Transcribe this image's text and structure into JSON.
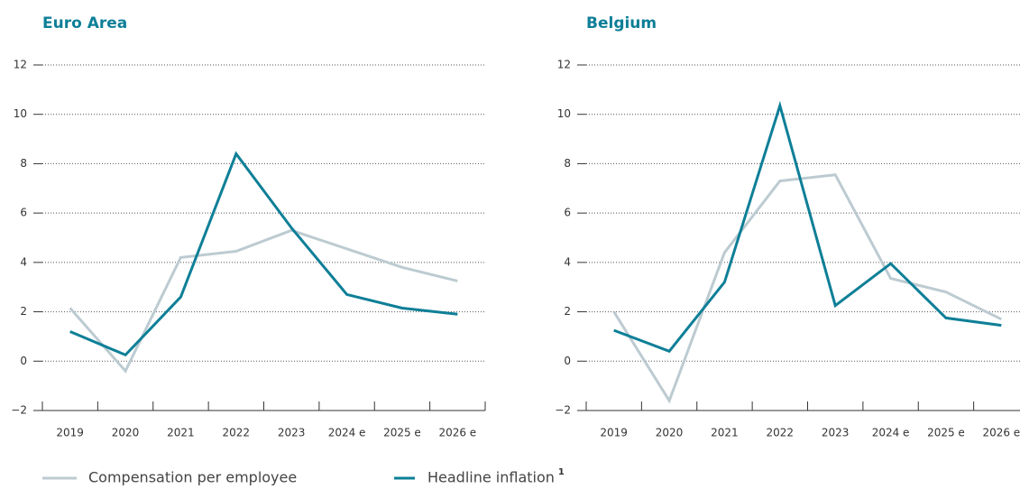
{
  "chart_data": [
    {
      "type": "line",
      "title": "Euro Area",
      "categories": [
        "2019",
        "2020",
        "2021",
        "2022",
        "2023",
        "2024 e",
        "2025 e",
        "2026 e"
      ],
      "series": [
        {
          "color": "#bccbd1",
          "values": [
            2.15,
            -0.4,
            4.2,
            4.45,
            5.3,
            4.55,
            3.8,
            3.25
          ]
        },
        {
          "color": "#0e7f97",
          "values": [
            1.2,
            0.25,
            2.6,
            8.4,
            5.4,
            2.7,
            2.15,
            1.9
          ]
        }
      ],
      "ylim": [
        -2,
        12
      ],
      "yticks": [
        {
          "value": -2,
          "label": "−2"
        },
        0,
        2,
        4,
        6,
        8,
        10,
        12
      ],
      "grid": true
    },
    {
      "type": "line",
      "title": "Belgium",
      "categories": [
        "2019",
        "2020",
        "2021",
        "2022",
        "2023",
        "2024 e",
        "2025 e",
        "2026 e"
      ],
      "series": [
        {
          "color": "#bccbd1",
          "values": [
            2.0,
            -1.6,
            4.4,
            7.3,
            7.55,
            3.35,
            2.8,
            1.7
          ]
        },
        {
          "color": "#0e7f97",
          "values": [
            1.25,
            0.4,
            3.2,
            10.35,
            2.25,
            3.95,
            1.75,
            1.45
          ]
        }
      ],
      "ylim": [
        -2,
        12
      ],
      "yticks": [
        {
          "value": -2,
          "label": "−2"
        },
        0,
        2,
        4,
        6,
        8,
        10,
        12
      ],
      "grid": true
    }
  ],
  "legend": [
    {
      "name": "Compensation per employee",
      "color": "#bccbd1"
    },
    {
      "name": "Headline inflation",
      "color": "#0e7f97",
      "footnote": "1"
    }
  ]
}
